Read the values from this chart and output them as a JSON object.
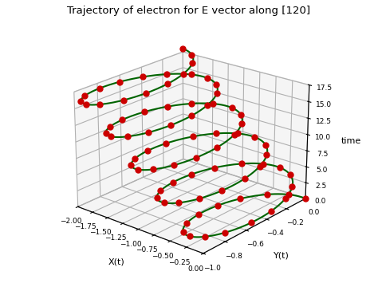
{
  "title": "Trajectory of electron for E vector along [120]",
  "xlabel": "X(t)",
  "ylabel": "Y(t)",
  "zlabel": "time",
  "xlim": [
    -2.0,
    0.0
  ],
  "ylim": [
    -1.0,
    0.0
  ],
  "zlim": [
    0.0,
    17.5
  ],
  "xticks": [
    -2.0,
    -1.75,
    -1.5,
    -1.25,
    -1.0,
    -0.75,
    -0.5,
    -0.25,
    0.0
  ],
  "yticks": [
    0.0,
    -0.2,
    -0.4,
    -0.6,
    -0.8,
    -1.0
  ],
  "zticks": [
    0.0,
    2.5,
    5.0,
    7.5,
    10.0,
    12.5,
    15.0,
    17.5
  ],
  "line_color": "#006400",
  "marker_color": "#cc0000",
  "marker_size": 5,
  "line_width": 1.5,
  "total_time": 18.0,
  "n_cycles": 5,
  "n_points": 500,
  "n_markers": 81,
  "elev": 22,
  "azim": -50
}
